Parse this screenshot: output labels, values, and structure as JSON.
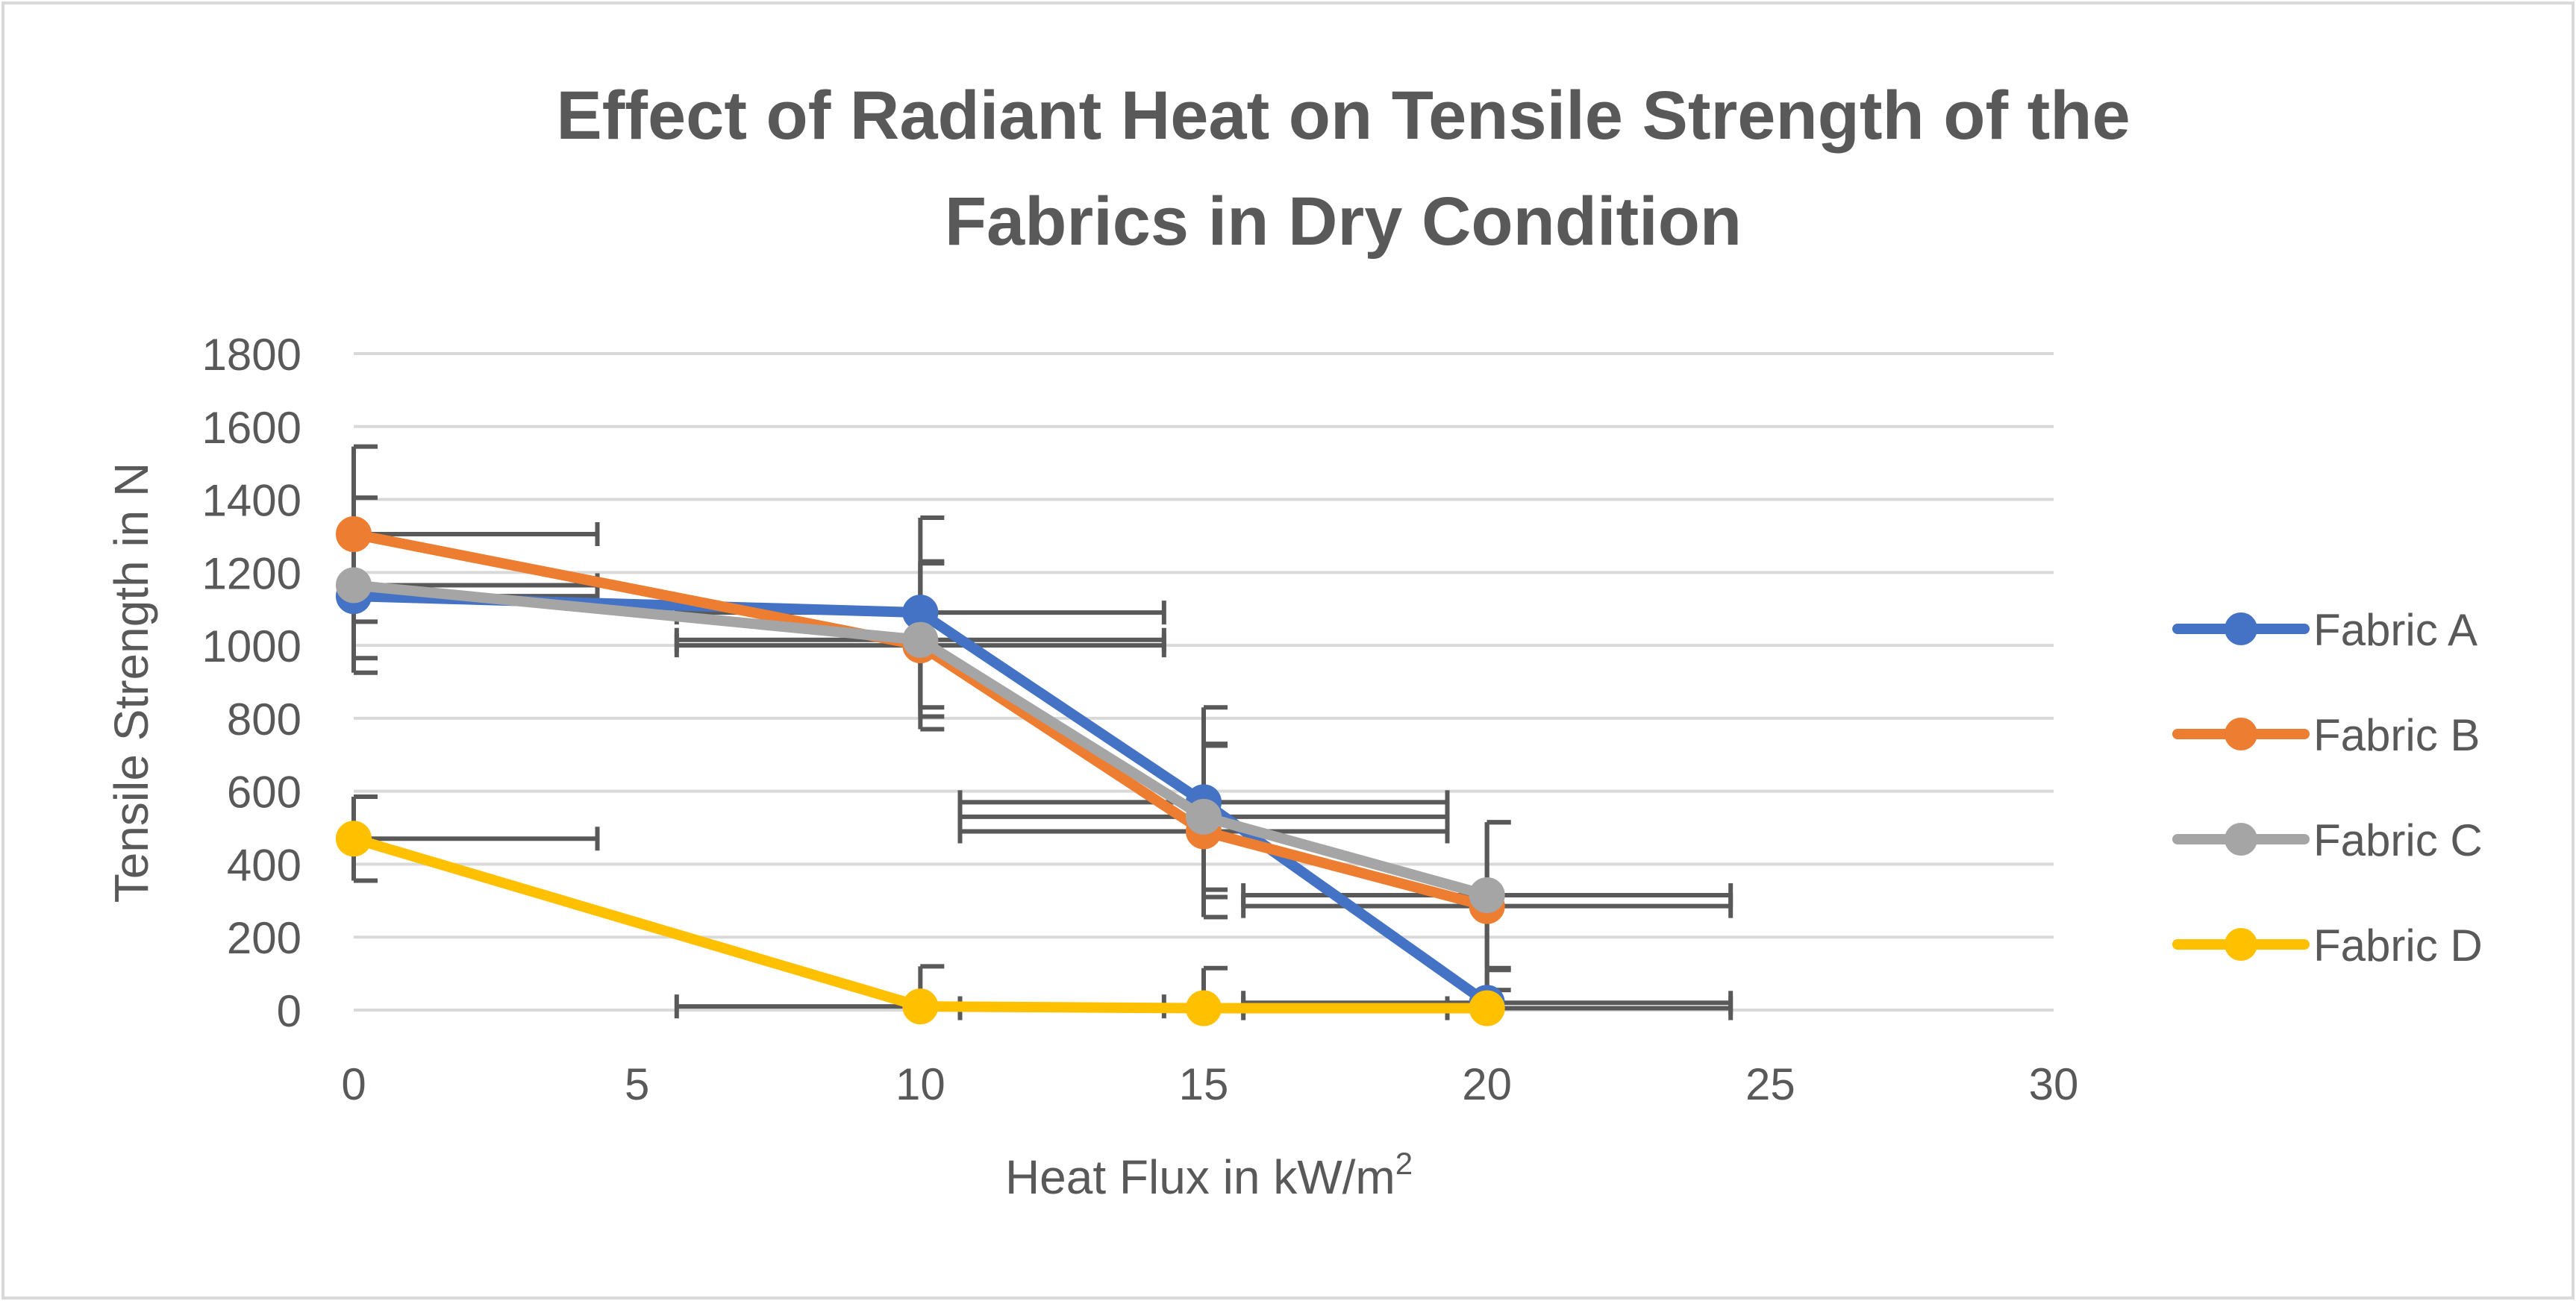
{
  "chart_data": {
    "type": "scatter",
    "title_lines": [
      "Effect of Radiant Heat on Tensile Strength of the",
      "Fabrics in Dry Condition"
    ],
    "xlabel": "Heat Flux in kW/m",
    "xlabel_superscript": "2",
    "ylabel": "Tensile Strength in N",
    "xlim": [
      0,
      30
    ],
    "ylim": [
      0,
      1800
    ],
    "x_ticks": [
      0,
      5,
      10,
      15,
      20,
      25,
      30
    ],
    "y_ticks": [
      0,
      200,
      400,
      600,
      800,
      1000,
      1200,
      1400,
      1600,
      1800
    ],
    "x_tick_labels": [
      "0",
      "5",
      "10",
      "15",
      "20",
      "25",
      "30"
    ],
    "y_tick_labels": [
      "0",
      "200",
      "400",
      "600",
      "800",
      "1000",
      "1200",
      "1400",
      "1600",
      "1800"
    ],
    "grid": "horizontal",
    "legend_position": "right",
    "error_bar_color": "#595959",
    "x_error": 4.3,
    "series": [
      {
        "name": "Fabric A",
        "color": "#4472C4",
        "x": [
          0,
          10,
          15,
          20
        ],
        "y": [
          1135,
          1090,
          570,
          20
        ],
        "y_error": [
          170,
          260,
          260,
          90
        ]
      },
      {
        "name": "Fabric B",
        "color": "#ED7D31",
        "x": [
          0,
          10,
          15,
          20
        ],
        "y": [
          1305,
          1000,
          490,
          285
        ],
        "y_error": [
          240,
          230,
          235,
          230
        ]
      },
      {
        "name": "Fabric C",
        "color": "#A5A5A5",
        "x": [
          0,
          10,
          15,
          20
        ],
        "y": [
          1165,
          1015,
          530,
          315
        ],
        "y_error": [
          240,
          210,
          200,
          200
        ]
      },
      {
        "name": "Fabric D",
        "color": "#FFC000",
        "x": [
          0,
          10,
          15,
          20
        ],
        "y": [
          470,
          10,
          5,
          5
        ],
        "y_error": [
          115,
          110,
          110,
          0
        ]
      }
    ]
  }
}
